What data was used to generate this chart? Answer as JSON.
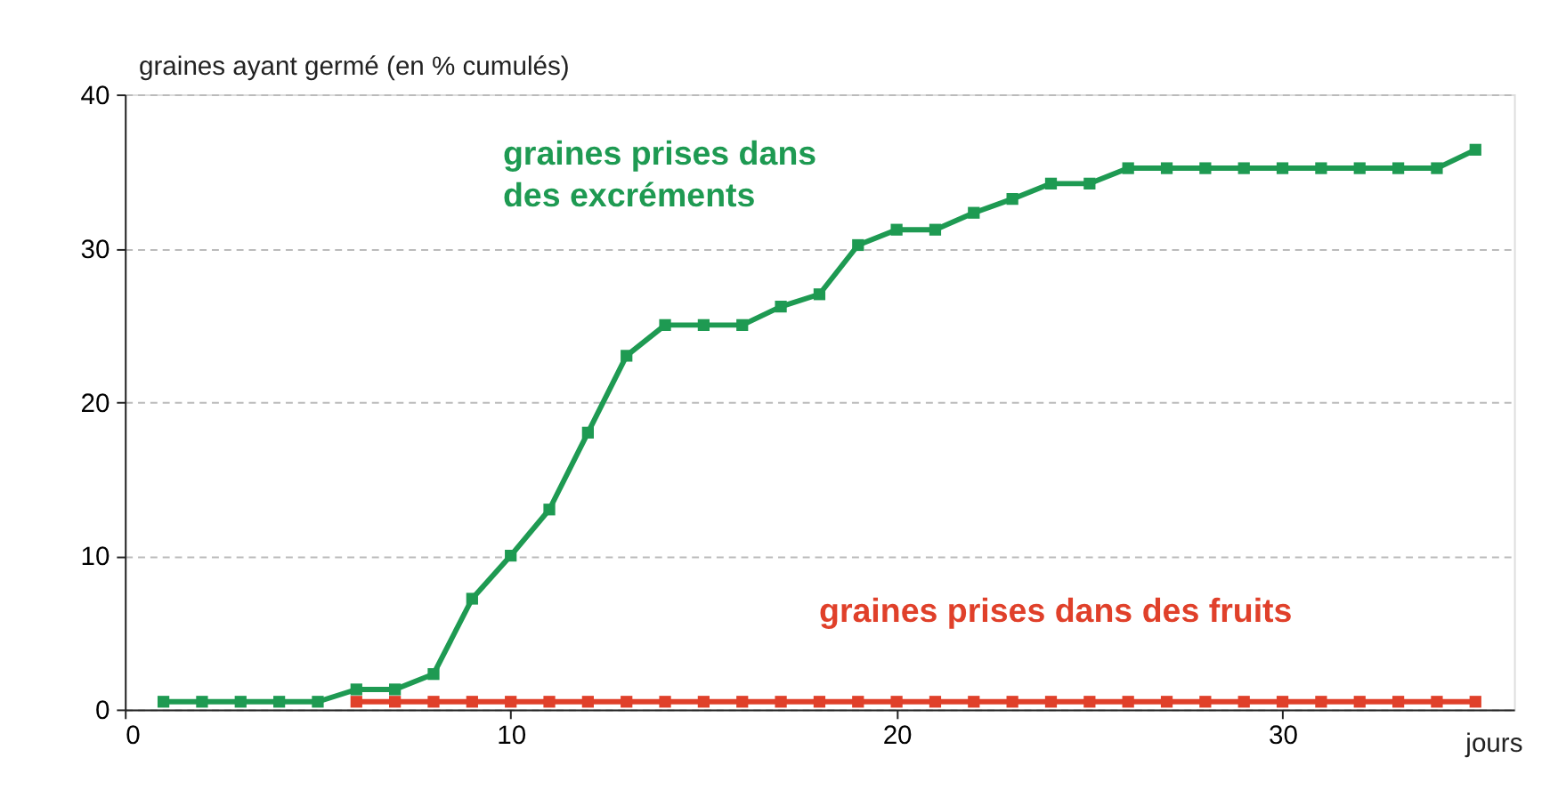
{
  "chart_data": {
    "type": "line",
    "xlabel": "jours",
    "ylabel": "graines ayant germé (en % cumulés)",
    "xlim": [
      0,
      36
    ],
    "xticks": [
      0,
      10,
      20,
      30
    ],
    "ylim": [
      0,
      40
    ],
    "yticks": [
      0,
      10,
      20,
      30,
      40
    ],
    "grid": "y",
    "marker": "square",
    "line_style": "solid",
    "series": [
      {
        "name": "graines prises dans des excréments",
        "color": "#1e9a52",
        "x": [
          1,
          2,
          3,
          4,
          5,
          6,
          7,
          8,
          9,
          10,
          11,
          12,
          13,
          14,
          15,
          16,
          17,
          18,
          19,
          20,
          21,
          22,
          23,
          24,
          25,
          26,
          27,
          28,
          29,
          30,
          31,
          32,
          33,
          34,
          35
        ],
        "values": [
          0.5,
          0.5,
          0.5,
          0.5,
          0.5,
          1.3,
          1.3,
          2.3,
          7.2,
          10,
          13,
          18,
          23,
          25,
          25,
          25,
          26.2,
          27,
          30.2,
          31.2,
          31.2,
          32.3,
          33.2,
          34.2,
          34.2,
          35.2,
          35.2,
          35.2,
          35.2,
          35.2,
          35.2,
          35.2,
          35.2,
          35.2,
          36.4
        ]
      },
      {
        "name": "graines prises dans des fruits",
        "color": "#e0402a",
        "x": [
          6,
          7,
          8,
          9,
          10,
          11,
          12,
          13,
          14,
          15,
          16,
          17,
          18,
          19,
          20,
          21,
          22,
          23,
          24,
          25,
          26,
          27,
          28,
          29,
          30,
          31,
          32,
          33,
          34,
          35
        ],
        "values": [
          0.5,
          0.5,
          0.5,
          0.5,
          0.5,
          0.5,
          0.5,
          0.5,
          0.5,
          0.5,
          0.5,
          0.5,
          0.5,
          0.5,
          0.5,
          0.5,
          0.5,
          0.5,
          0.5,
          0.5,
          0.5,
          0.5,
          0.5,
          0.5,
          0.5,
          0.5,
          0.5,
          0.5,
          0.5,
          0.5
        ]
      }
    ]
  }
}
